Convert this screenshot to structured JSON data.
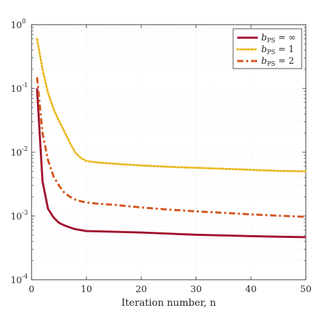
{
  "chart_data": {
    "type": "line",
    "title": "",
    "xlabel": "Iteration number, n",
    "ylabel": "",
    "xlim": [
      0,
      50
    ],
    "ylim": [
      0.0001,
      1
    ],
    "yscale": "log",
    "grid": true,
    "legend_position": "top-right",
    "x_ticks": [
      "0",
      "10",
      "20",
      "30",
      "40",
      "50"
    ],
    "y_ticks": [
      {
        "base": "10",
        "exp": "0",
        "value": 1
      },
      {
        "base": "10",
        "exp": "-1",
        "value": 0.1
      },
      {
        "base": "10",
        "exp": "-2",
        "value": 0.01
      },
      {
        "base": "10",
        "exp": "-3",
        "value": 0.001
      },
      {
        "base": "10",
        "exp": "-4",
        "value": 0.0001
      }
    ],
    "series": [
      {
        "name": "b_PS = ∞",
        "legend_main": "b",
        "legend_sub": "PS",
        "legend_rhs": " = ∞",
        "color": "#a1122e",
        "style": "solid",
        "x": [
          1,
          2,
          3,
          4,
          5,
          6,
          7,
          8,
          9,
          10,
          15,
          20,
          25,
          30,
          35,
          40,
          45,
          50
        ],
        "y": [
          0.1,
          0.0035,
          0.0013,
          0.00095,
          0.00078,
          0.00071,
          0.00066,
          0.00062,
          0.0006,
          0.00058,
          0.000565,
          0.00055,
          0.000528,
          0.000508,
          0.000495,
          0.000483,
          0.000473,
          0.000465
        ]
      },
      {
        "name": "b_PS = 1",
        "legend_main": "b",
        "legend_sub": "PS",
        "legend_rhs": " = 1",
        "color": "#e8b820",
        "style": "dotted",
        "x": [
          1,
          2,
          3,
          4,
          5,
          6,
          7,
          8,
          9,
          10,
          12,
          15,
          20,
          25,
          30,
          35,
          40,
          45,
          50
        ],
        "y": [
          0.6,
          0.2,
          0.085,
          0.048,
          0.031,
          0.021,
          0.014,
          0.0098,
          0.0081,
          0.0073,
          0.0069,
          0.0066,
          0.0062,
          0.0059,
          0.0057,
          0.0055,
          0.0053,
          0.0051,
          0.005
        ]
      },
      {
        "name": "b_PS = 2",
        "legend_main": "b",
        "legend_sub": "PS",
        "legend_rhs": " = 2",
        "color": "#d4521c",
        "style": "dashdot",
        "x": [
          1,
          2,
          3,
          4,
          5,
          6,
          7,
          8,
          9,
          10,
          12,
          15,
          20,
          25,
          30,
          35,
          40,
          45,
          50
        ],
        "y": [
          0.15,
          0.02,
          0.0075,
          0.0042,
          0.003,
          0.0023,
          0.002,
          0.0018,
          0.0017,
          0.00163,
          0.00156,
          0.0015,
          0.00136,
          0.00126,
          0.00118,
          0.00112,
          0.00106,
          0.00101,
          0.00097
        ]
      }
    ]
  }
}
